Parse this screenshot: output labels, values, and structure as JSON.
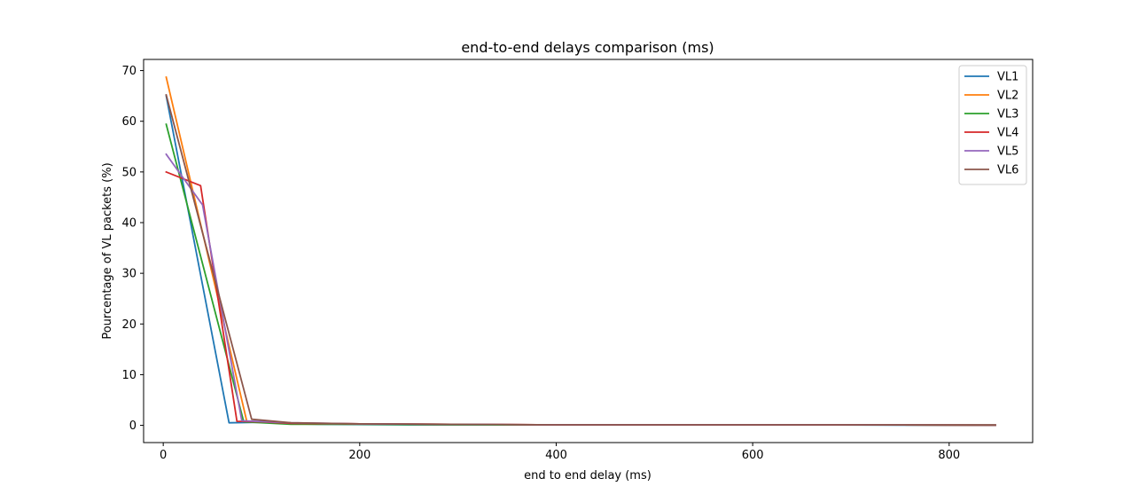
{
  "chart_data": {
    "type": "line",
    "title": "end-to-end delays comparison (ms)",
    "xlabel": "end to end delay (ms)",
    "ylabel": "Pourcentage of VL packets (%)",
    "xlim": [
      -20,
      885
    ],
    "ylim": [
      -3.4,
      72.2
    ],
    "xticks": [
      0,
      200,
      400,
      600,
      800
    ],
    "yticks": [
      0,
      10,
      20,
      30,
      40,
      50,
      60,
      70
    ],
    "grid": false,
    "legend_position": "top-right",
    "series": [
      {
        "name": "VL1",
        "color": "#1f77b4",
        "x": [
          3,
          67,
          100,
          130,
          160,
          250,
          350,
          450,
          550,
          650,
          750,
          847
        ],
        "y": [
          65.0,
          0.5,
          0.6,
          0.3,
          0.2,
          0.1,
          0.1,
          0.1,
          0.1,
          0.1,
          0.05,
          0.05
        ]
      },
      {
        "name": "VL2",
        "color": "#ff7f0e",
        "x": [
          3,
          85,
          130,
          200,
          300,
          400,
          500,
          600,
          700,
          847
        ],
        "y": [
          68.7,
          0.8,
          0.4,
          0.3,
          0.2,
          0.1,
          0.1,
          0.1,
          0.1,
          0.05
        ]
      },
      {
        "name": "VL3",
        "color": "#2ca02c",
        "x": [
          3,
          82,
          130,
          200,
          300,
          400,
          500,
          600,
          700,
          847
        ],
        "y": [
          59.4,
          0.7,
          0.2,
          0.2,
          0.1,
          0.1,
          0.1,
          0.1,
          0.1,
          0.05
        ]
      },
      {
        "name": "VL4",
        "color": "#d62728",
        "x": [
          3,
          38,
          75,
          100,
          130,
          200,
          300,
          400,
          500,
          600,
          700,
          847
        ],
        "y": [
          50.0,
          47.3,
          0.8,
          0.7,
          0.4,
          0.3,
          0.2,
          0.1,
          0.1,
          0.1,
          0.1,
          0.05
        ]
      },
      {
        "name": "VL5",
        "color": "#9467bd",
        "x": [
          3,
          40,
          80,
          130,
          200,
          300,
          400,
          500,
          600,
          700,
          847
        ],
        "y": [
          53.5,
          43.5,
          0.9,
          0.5,
          0.3,
          0.2,
          0.1,
          0.1,
          0.1,
          0.1,
          0.05
        ]
      },
      {
        "name": "VL6",
        "color": "#8c564b",
        "x": [
          3,
          90,
          130,
          200,
          300,
          400,
          500,
          600,
          700,
          847
        ],
        "y": [
          65.2,
          1.2,
          0.5,
          0.3,
          0.2,
          0.1,
          0.1,
          0.1,
          0.1,
          0.05
        ]
      }
    ]
  }
}
